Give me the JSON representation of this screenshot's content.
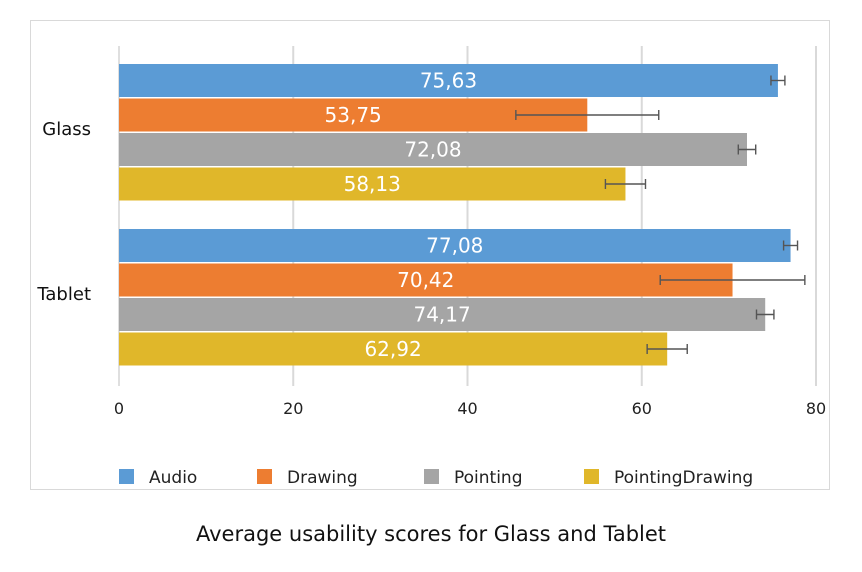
{
  "caption": "Average usability scores for Glass and Tablet",
  "chart_data": {
    "type": "bar",
    "orientation": "horizontal",
    "categories": [
      "Glass",
      "Tablet"
    ],
    "series": [
      {
        "name": "Audio",
        "color": "#5b9bd5",
        "values": [
          75.63,
          77.08
        ],
        "labels": [
          "75,63",
          "77,08"
        ],
        "error": [
          0.8,
          0.8
        ]
      },
      {
        "name": "Drawing",
        "color": "#ed7d31",
        "values": [
          53.75,
          70.42
        ],
        "labels": [
          "53,75",
          "70,42"
        ],
        "error": [
          8.2,
          8.3
        ]
      },
      {
        "name": "Pointing",
        "color": "#a5a5a5",
        "values": [
          72.08,
          74.17
        ],
        "labels": [
          "72,08",
          "74,17"
        ],
        "error": [
          1.0,
          1.0
        ]
      },
      {
        "name": "PointingDrawing",
        "color": "#e0b72a",
        "values": [
          58.13,
          62.92
        ],
        "labels": [
          "58,13",
          "62,92"
        ],
        "error": [
          2.3,
          2.3
        ]
      }
    ],
    "xlim": [
      0,
      80
    ],
    "xticks": [
      "0",
      "20",
      "40",
      "60",
      "80"
    ],
    "grid": true,
    "legend_position": "bottom",
    "title": "",
    "xlabel": "",
    "ylabel": ""
  }
}
